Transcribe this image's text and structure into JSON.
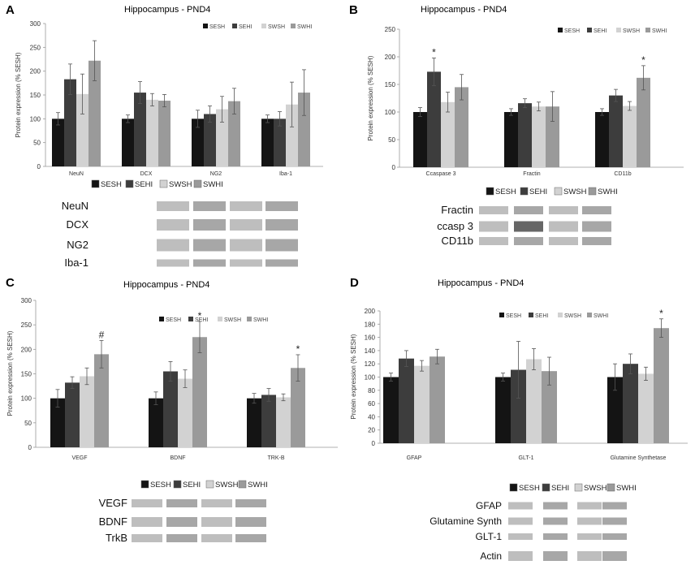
{
  "colors": {
    "SESH": "#141414",
    "SEHI": "#3d3d3d",
    "SWSH": "#d2d2d2",
    "SWHI": "#9a9a9a",
    "axis": "#999999",
    "grid": "#e6e6e6"
  },
  "panels": [
    {
      "letter": "A",
      "title": "Hippocampus - PND4",
      "ylabel": "Protein expression (% SESH)",
      "ylim": [
        0,
        300
      ],
      "yticks": [
        0,
        50,
        100,
        150,
        200,
        250,
        300
      ],
      "legend": [
        "SESH",
        "SEHI",
        "SWSH",
        "SWHI"
      ],
      "blot_legend": [
        "SESH",
        "SEHI",
        "SWSH",
        "SWHI"
      ],
      "blot_rows": [
        "NeuN",
        "DCX",
        "NG2",
        "Iba-1"
      ]
    },
    {
      "letter": "B",
      "title": "Hippocampus - PND4",
      "ylabel": "Protein expression (% SESH)",
      "ylim": [
        0,
        250
      ],
      "yticks": [
        0,
        50,
        100,
        150,
        200,
        250
      ],
      "legend": [
        "SESH",
        "SEHI",
        "SWSH",
        "SWHI"
      ],
      "blot_legend": [
        "SESH",
        "SEHI",
        "SWSH",
        "SWHI"
      ],
      "blot_rows": [
        "Fractin",
        "ccasp 3",
        "CD11b"
      ]
    },
    {
      "letter": "C",
      "title": "Hippocampus - PND4",
      "ylabel": "Protein expression (% SESH)",
      "ylim": [
        0,
        300
      ],
      "yticks": [
        0,
        50,
        100,
        150,
        200,
        250,
        300
      ],
      "legend": [
        "SESH",
        "SEHI",
        "SWSH",
        "SWHI"
      ],
      "blot_legend": [
        "SESH",
        "SEHI",
        "SWSH",
        "SWHI"
      ],
      "blot_rows": [
        "VEGF",
        "BDNF",
        "TrkB"
      ]
    },
    {
      "letter": "D",
      "title": "Hippocampus  - PND4",
      "ylabel": "Protein expression (% SESH)",
      "ylim": [
        0,
        200
      ],
      "yticks": [
        0,
        20,
        40,
        60,
        80,
        100,
        120,
        140,
        160,
        180,
        200
      ],
      "legend": [
        "SESH",
        "SEHI",
        "SWSH",
        "SWHI"
      ],
      "blot_legend": [
        "SESH",
        "SEHI",
        "SWSH",
        "SWHI"
      ],
      "blot_rows": [
        "GFAP",
        "Glutamine Synth",
        "GLT-1",
        "Actin"
      ]
    }
  ],
  "chart_data": [
    {
      "type": "bar",
      "title": "Hippocampus - PND4",
      "ylabel": "Protein expression (% SESH)",
      "ylim": [
        0,
        300
      ],
      "categories": [
        "NeuN",
        "DCX",
        "NG2",
        "Iba-1"
      ],
      "series": [
        {
          "name": "SESH",
          "values": [
            100,
            100,
            100,
            100
          ],
          "errors": [
            13,
            8,
            18,
            8
          ]
        },
        {
          "name": "SEHI",
          "values": [
            183,
            155,
            110,
            100
          ],
          "errors": [
            32,
            23,
            17,
            15
          ]
        },
        {
          "name": "SWSH",
          "values": [
            152,
            140,
            120,
            130
          ],
          "errors": [
            42,
            13,
            27,
            47
          ]
        },
        {
          "name": "SWHI",
          "values": [
            222,
            138,
            137,
            155
          ],
          "errors": [
            42,
            13,
            27,
            48
          ]
        }
      ],
      "annotations": []
    },
    {
      "type": "bar",
      "title": "Hippocampus - PND4",
      "ylabel": "Protein expression (% SESH)",
      "ylim": [
        0,
        250
      ],
      "categories": [
        "Ccaspase 3",
        "Fractin",
        "CD11b"
      ],
      "series": [
        {
          "name": "SESH",
          "values": [
            100,
            100,
            100
          ],
          "errors": [
            8,
            6,
            6
          ]
        },
        {
          "name": "SEHI",
          "values": [
            173,
            116,
            130
          ],
          "errors": [
            25,
            8,
            11
          ]
        },
        {
          "name": "SWSH",
          "values": [
            118,
            110,
            111
          ],
          "errors": [
            18,
            8,
            8
          ]
        },
        {
          "name": "SWHI",
          "values": [
            145,
            110,
            162
          ],
          "errors": [
            23,
            27,
            22
          ]
        }
      ],
      "annotations": [
        {
          "category": "Ccaspase 3",
          "series": "SEHI",
          "text": "*"
        },
        {
          "category": "CD11b",
          "series": "SWHI",
          "text": "*"
        }
      ]
    },
    {
      "type": "bar",
      "title": "Hippocampus - PND4",
      "ylabel": "Protein expression (% SESH)",
      "ylim": [
        0,
        300
      ],
      "categories": [
        "VEGF",
        "BDNF",
        "TRK-B"
      ],
      "series": [
        {
          "name": "SESH",
          "values": [
            100,
            100,
            100
          ],
          "errors": [
            18,
            13,
            10
          ]
        },
        {
          "name": "SEHI",
          "values": [
            132,
            155,
            107
          ],
          "errors": [
            12,
            20,
            13
          ]
        },
        {
          "name": "SWSH",
          "values": [
            145,
            140,
            102
          ],
          "errors": [
            17,
            18,
            7
          ]
        },
        {
          "name": "SWHI",
          "values": [
            190,
            225,
            162
          ],
          "errors": [
            28,
            32,
            27
          ]
        }
      ],
      "annotations": [
        {
          "category": "VEGF",
          "series": "SWHI",
          "text": "#"
        },
        {
          "category": "BDNF",
          "series": "SWHI",
          "text": "*"
        },
        {
          "category": "TRK-B",
          "series": "SWHI",
          "text": "*"
        }
      ]
    },
    {
      "type": "bar",
      "title": "Hippocampus  - PND4",
      "ylabel": "Protein expression (% SESH)",
      "ylim": [
        0,
        200
      ],
      "categories": [
        "GFAP",
        "GLT-1",
        "Glutamine Synthetase"
      ],
      "series": [
        {
          "name": "SESH",
          "values": [
            100,
            100,
            100
          ],
          "errors": [
            6,
            6,
            20
          ]
        },
        {
          "name": "SEHI",
          "values": [
            128,
            111,
            120
          ],
          "errors": [
            12,
            43,
            15
          ]
        },
        {
          "name": "SWSH",
          "values": [
            117,
            127,
            105
          ],
          "errors": [
            8,
            16,
            10
          ]
        },
        {
          "name": "SWHI",
          "values": [
            131,
            109,
            174
          ],
          "errors": [
            11,
            21,
            14
          ]
        }
      ],
      "annotations": [
        {
          "category": "Glutamine Synthetase",
          "series": "SWHI",
          "text": "*"
        }
      ]
    }
  ]
}
